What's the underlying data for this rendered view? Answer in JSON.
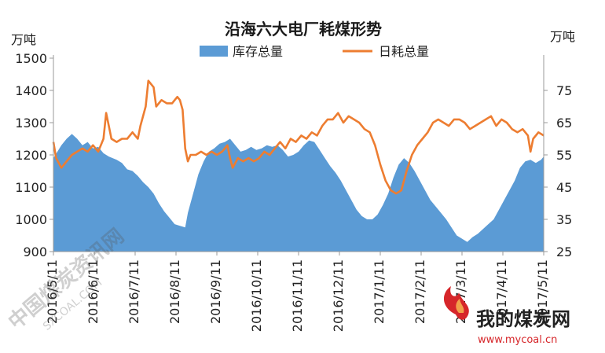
{
  "chart_data": {
    "type": "area",
    "title": "沿海六大电厂耗煤形势",
    "left_unit": "万吨",
    "right_unit": "万吨",
    "y_left": {
      "min": 900,
      "max": 1500,
      "ticks": [
        "1500",
        "1400",
        "1300",
        "1200",
        "1100",
        "1000",
        "900"
      ]
    },
    "y_right": {
      "min": 25,
      "max": 85,
      "ticks": [
        "75",
        "65",
        "55",
        "45",
        "35",
        "25"
      ]
    },
    "x_labels": [
      "2016/5/11",
      "2016/6/11",
      "2016/7/11",
      "2016/8/11",
      "2016/9/11",
      "2016/10/11",
      "2016/11/11",
      "2016/12/11",
      "2017/1/11",
      "2017/2/11",
      "2017/3/11",
      "2017/4/11",
      "2017/5/11"
    ],
    "legend_position": "top",
    "series": [
      {
        "name": "库存总量",
        "kind": "area",
        "axis": "left",
        "color": "#5b9bd5",
        "points": [
          [
            0,
            1190
          ],
          [
            3,
            1230
          ],
          [
            5,
            1250
          ],
          [
            7,
            1265
          ],
          [
            9,
            1250
          ],
          [
            11,
            1230
          ],
          [
            13,
            1240
          ],
          [
            15,
            1220
          ],
          [
            17,
            1225
          ],
          [
            19,
            1205
          ],
          [
            21,
            1195
          ],
          [
            24,
            1185
          ],
          [
            26,
            1175
          ],
          [
            28,
            1155
          ],
          [
            30,
            1150
          ],
          [
            32,
            1135
          ],
          [
            34,
            1115
          ],
          [
            36,
            1100
          ],
          [
            38,
            1080
          ],
          [
            40,
            1050
          ],
          [
            42,
            1025
          ],
          [
            44,
            1005
          ],
          [
            46,
            985
          ],
          [
            48,
            980
          ],
          [
            50,
            975
          ],
          [
            51,
            1020
          ],
          [
            53,
            1080
          ],
          [
            55,
            1140
          ],
          [
            57,
            1180
          ],
          [
            59,
            1210
          ],
          [
            61,
            1220
          ],
          [
            63,
            1235
          ],
          [
            65,
            1240
          ],
          [
            67,
            1250
          ],
          [
            69,
            1230
          ],
          [
            71,
            1210
          ],
          [
            73,
            1215
          ],
          [
            75,
            1225
          ],
          [
            77,
            1215
          ],
          [
            79,
            1220
          ],
          [
            81,
            1230
          ],
          [
            83,
            1225
          ],
          [
            85,
            1230
          ],
          [
            87,
            1215
          ],
          [
            89,
            1195
          ],
          [
            91,
            1200
          ],
          [
            93,
            1210
          ],
          [
            95,
            1230
          ],
          [
            97,
            1245
          ],
          [
            99,
            1240
          ],
          [
            101,
            1215
          ],
          [
            103,
            1190
          ],
          [
            105,
            1165
          ],
          [
            107,
            1145
          ],
          [
            109,
            1120
          ],
          [
            111,
            1090
          ],
          [
            113,
            1060
          ],
          [
            115,
            1030
          ],
          [
            117,
            1010
          ],
          [
            119,
            1000
          ],
          [
            121,
            1000
          ],
          [
            123,
            1015
          ],
          [
            125,
            1045
          ],
          [
            127,
            1080
          ],
          [
            129,
            1130
          ],
          [
            131,
            1170
          ],
          [
            133,
            1190
          ],
          [
            135,
            1175
          ],
          [
            137,
            1150
          ],
          [
            139,
            1120
          ],
          [
            141,
            1090
          ],
          [
            143,
            1060
          ],
          [
            145,
            1040
          ],
          [
            147,
            1020
          ],
          [
            149,
            1000
          ],
          [
            151,
            975
          ],
          [
            153,
            950
          ],
          [
            155,
            940
          ],
          [
            157,
            930
          ],
          [
            159,
            945
          ],
          [
            161,
            955
          ],
          [
            163,
            970
          ],
          [
            165,
            985
          ],
          [
            167,
            1000
          ],
          [
            169,
            1030
          ],
          [
            171,
            1060
          ],
          [
            173,
            1090
          ],
          [
            175,
            1120
          ],
          [
            177,
            1160
          ],
          [
            179,
            1180
          ],
          [
            181,
            1185
          ],
          [
            183,
            1175
          ],
          [
            185,
            1185
          ],
          [
            186,
            1195
          ]
        ]
      },
      {
        "name": "日耗总量",
        "kind": "line",
        "axis": "right",
        "color": "#ed7d31",
        "points": [
          [
            0,
            59
          ],
          [
            1,
            54
          ],
          [
            3,
            51
          ],
          [
            5,
            53
          ],
          [
            7,
            55
          ],
          [
            9,
            56
          ],
          [
            11,
            57
          ],
          [
            13,
            56
          ],
          [
            15,
            58
          ],
          [
            17,
            56
          ],
          [
            19,
            60
          ],
          [
            20,
            68
          ],
          [
            21,
            64
          ],
          [
            22,
            60
          ],
          [
            24,
            59
          ],
          [
            26,
            60
          ],
          [
            28,
            60
          ],
          [
            30,
            62
          ],
          [
            32,
            60
          ],
          [
            33,
            64
          ],
          [
            35,
            70
          ],
          [
            36,
            78
          ],
          [
            38,
            76
          ],
          [
            39,
            70
          ],
          [
            41,
            72
          ],
          [
            43,
            71
          ],
          [
            45,
            71
          ],
          [
            47,
            73
          ],
          [
            48,
            72
          ],
          [
            49,
            69
          ],
          [
            50,
            57
          ],
          [
            51,
            53
          ],
          [
            52,
            55
          ],
          [
            54,
            55
          ],
          [
            56,
            56
          ],
          [
            58,
            55
          ],
          [
            60,
            56
          ],
          [
            62,
            55
          ],
          [
            64,
            56
          ],
          [
            66,
            58
          ],
          [
            67,
            54
          ],
          [
            68,
            51
          ],
          [
            70,
            54
          ],
          [
            72,
            53
          ],
          [
            74,
            54
          ],
          [
            76,
            53
          ],
          [
            78,
            54
          ],
          [
            80,
            56
          ],
          [
            82,
            55
          ],
          [
            84,
            57
          ],
          [
            86,
            59
          ],
          [
            88,
            57
          ],
          [
            90,
            60
          ],
          [
            92,
            59
          ],
          [
            94,
            61
          ],
          [
            96,
            60
          ],
          [
            98,
            62
          ],
          [
            100,
            61
          ],
          [
            102,
            64
          ],
          [
            104,
            66
          ],
          [
            106,
            66
          ],
          [
            108,
            68
          ],
          [
            110,
            65
          ],
          [
            112,
            67
          ],
          [
            114,
            66
          ],
          [
            116,
            65
          ],
          [
            118,
            63
          ],
          [
            120,
            62
          ],
          [
            122,
            58
          ],
          [
            124,
            52
          ],
          [
            126,
            47
          ],
          [
            128,
            44
          ],
          [
            130,
            43
          ],
          [
            132,
            44
          ],
          [
            134,
            50
          ],
          [
            136,
            55
          ],
          [
            138,
            58
          ],
          [
            140,
            60
          ],
          [
            142,
            62
          ],
          [
            144,
            65
          ],
          [
            146,
            66
          ],
          [
            148,
            65
          ],
          [
            150,
            64
          ],
          [
            152,
            66
          ],
          [
            154,
            66
          ],
          [
            156,
            65
          ],
          [
            158,
            63
          ],
          [
            160,
            64
          ],
          [
            162,
            65
          ],
          [
            164,
            66
          ],
          [
            166,
            67
          ],
          [
            168,
            64
          ],
          [
            170,
            66
          ],
          [
            172,
            65
          ],
          [
            174,
            63
          ],
          [
            176,
            62
          ],
          [
            178,
            63
          ],
          [
            180,
            61
          ],
          [
            181,
            56
          ],
          [
            182,
            60
          ],
          [
            184,
            62
          ],
          [
            186,
            61
          ]
        ]
      }
    ]
  },
  "watermark": {
    "left_text": "中国煤炭资讯网",
    "left_sub": "SXCOAL.COM",
    "logo_text": "我的煤炭网",
    "logo_url": "www.mycoal.cn"
  }
}
